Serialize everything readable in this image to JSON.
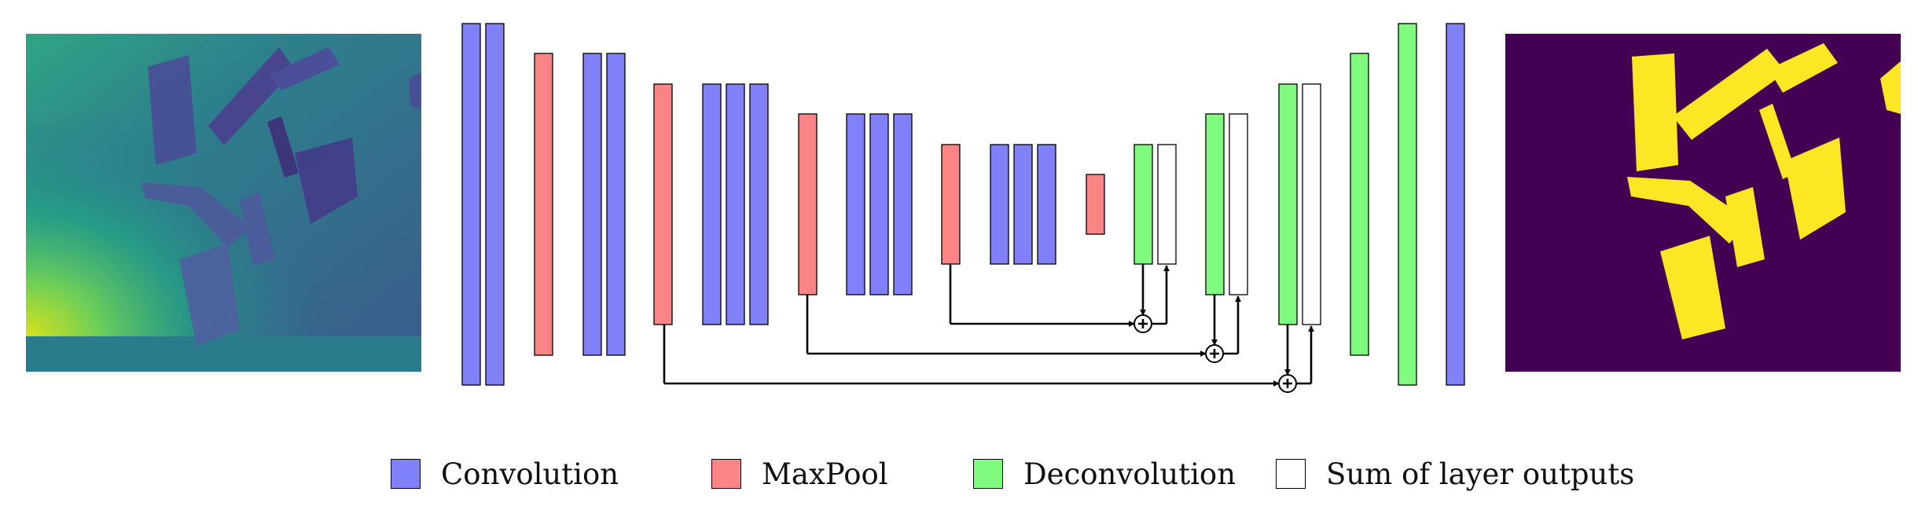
{
  "colors": {
    "convolution": "#8080f8",
    "maxpool": "#fb8484",
    "deconvolution": "#80fb80",
    "sum": "#ffffff",
    "stroke": "#000000"
  },
  "legend": [
    {
      "key": "convolution",
      "label": "Convolution"
    },
    {
      "key": "maxpool",
      "label": "MaxPool"
    },
    {
      "key": "deconvolution",
      "label": "Deconvolution"
    },
    {
      "key": "sum",
      "label": "Sum of layer outputs"
    }
  ],
  "input_image": {
    "kind": "depth-image",
    "colormap": "viridis"
  },
  "output_image": {
    "kind": "segmentation-mask",
    "background": "#440154",
    "foreground": "#fde725"
  },
  "layers": [
    {
      "type": "convolution"
    },
    {
      "type": "convolution"
    },
    {
      "type": "maxpool"
    },
    {
      "type": "convolution"
    },
    {
      "type": "convolution"
    },
    {
      "type": "maxpool"
    },
    {
      "type": "convolution"
    },
    {
      "type": "convolution"
    },
    {
      "type": "convolution"
    },
    {
      "type": "maxpool"
    },
    {
      "type": "convolution"
    },
    {
      "type": "convolution"
    },
    {
      "type": "convolution"
    },
    {
      "type": "maxpool"
    },
    {
      "type": "convolution"
    },
    {
      "type": "convolution"
    },
    {
      "type": "convolution"
    },
    {
      "type": "maxpool"
    },
    {
      "type": "deconvolution"
    },
    {
      "type": "sum"
    },
    {
      "type": "deconvolution"
    },
    {
      "type": "sum"
    },
    {
      "type": "deconvolution"
    },
    {
      "type": "sum"
    },
    {
      "type": "deconvolution"
    },
    {
      "type": "deconvolution"
    },
    {
      "type": "convolution"
    }
  ]
}
